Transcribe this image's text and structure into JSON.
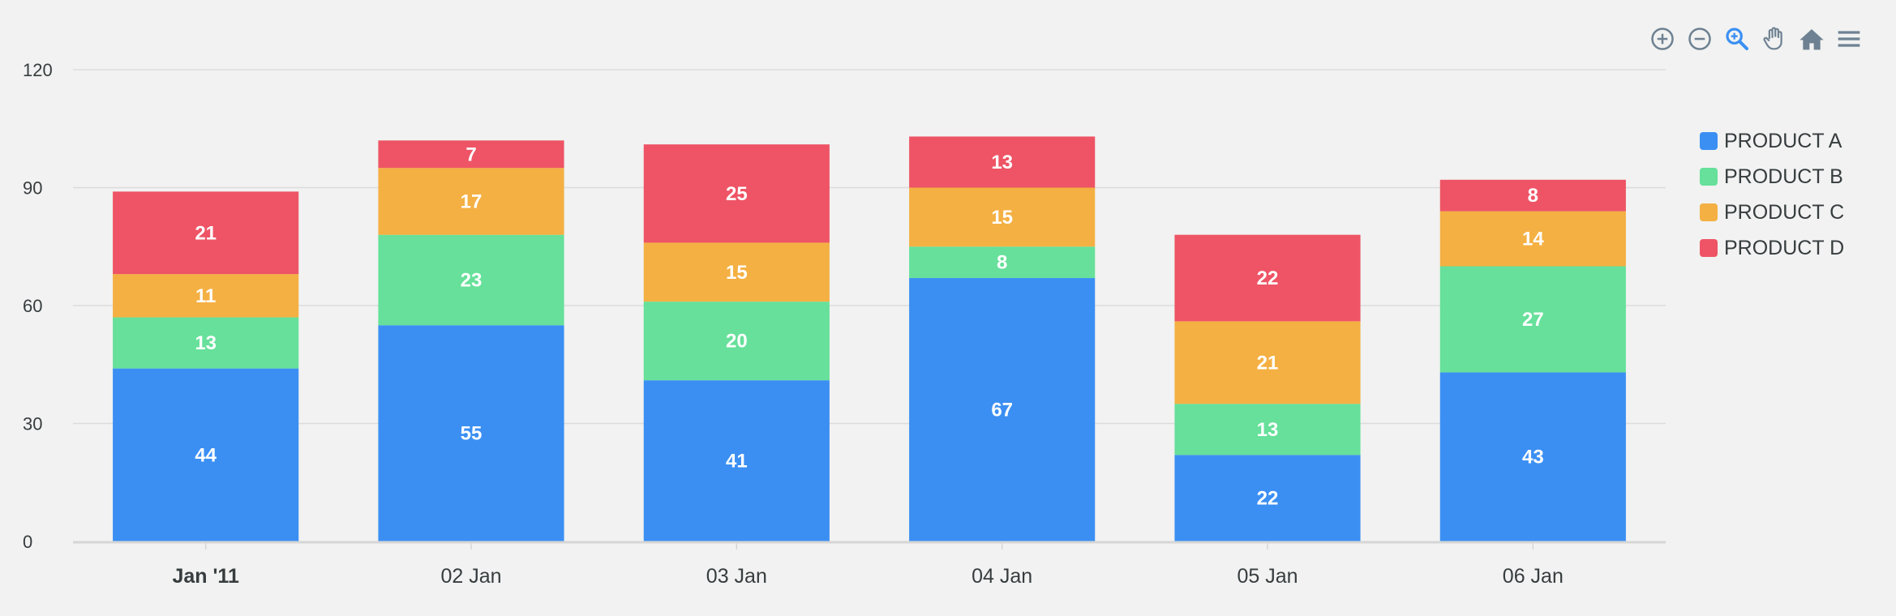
{
  "chart_data": {
    "type": "bar",
    "stacked": true,
    "categories": [
      "Jan '11",
      "02 Jan",
      "03 Jan",
      "04 Jan",
      "05 Jan",
      "06 Jan"
    ],
    "series": [
      {
        "name": "PRODUCT A",
        "color": "#3b8ff3",
        "values": [
          44,
          55,
          41,
          67,
          22,
          43
        ]
      },
      {
        "name": "PRODUCT B",
        "color": "#66e09a",
        "values": [
          13,
          23,
          20,
          8,
          13,
          27
        ]
      },
      {
        "name": "PRODUCT C",
        "color": "#f4b043",
        "values": [
          11,
          17,
          15,
          15,
          21,
          14
        ]
      },
      {
        "name": "PRODUCT D",
        "color": "#ee5465",
        "values": [
          21,
          7,
          25,
          13,
          22,
          8
        ]
      }
    ],
    "yticks": [
      "0",
      "30",
      "60",
      "90",
      "120"
    ],
    "ylim": [
      0,
      120
    ],
    "grid": true,
    "legend_position": "right"
  },
  "toolbar": {
    "icons": [
      "zoom-in-icon",
      "zoom-out-icon",
      "selection-zoom-icon",
      "pan-icon",
      "home-icon",
      "menu-icon"
    ]
  }
}
